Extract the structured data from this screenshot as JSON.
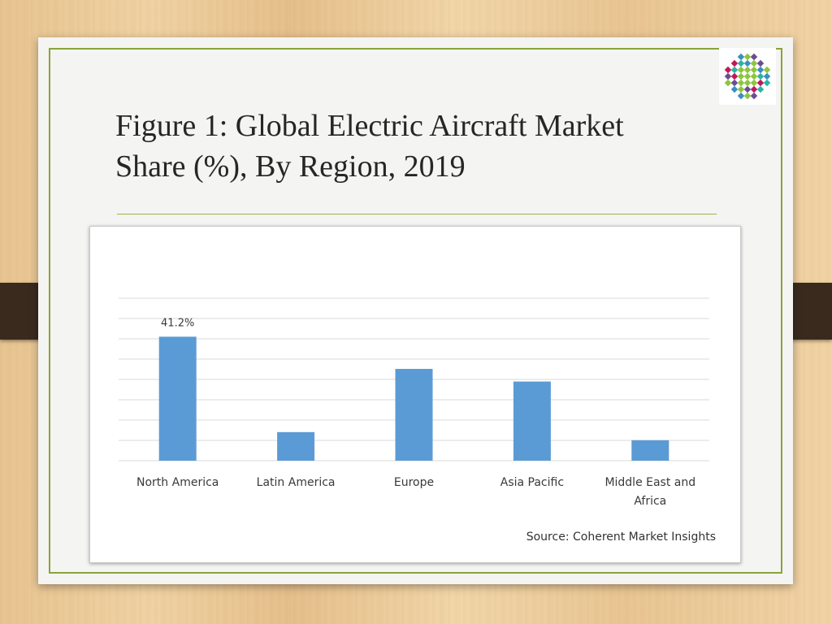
{
  "slide": {
    "title_line1": "Figure 1: Global Electric Aircraft Market",
    "title_line2": "Share (%), By Region, 2019",
    "source": "Source: Coherent Market Insights"
  },
  "colors": {
    "bar": "#5b9bd5",
    "frame": "#8aa33a",
    "gridline": "#d9d9d9"
  },
  "chart_data": {
    "type": "bar",
    "categories": [
      "North America",
      "Latin America",
      "Europe",
      "Asia Pacific",
      "Middle East and Africa"
    ],
    "category_lines": [
      [
        "North America"
      ],
      [
        "Latin America"
      ],
      [
        "Europe"
      ],
      [
        "Asia Pacific"
      ],
      [
        "Middle East and",
        "Africa"
      ]
    ],
    "values": [
      41.2,
      9.5,
      30.5,
      26.3,
      6.8
    ],
    "data_labels": [
      "41.2%",
      "",
      "",
      "",
      ""
    ],
    "ylim": [
      0,
      54
    ],
    "grid": true,
    "gridline_count": 8
  }
}
